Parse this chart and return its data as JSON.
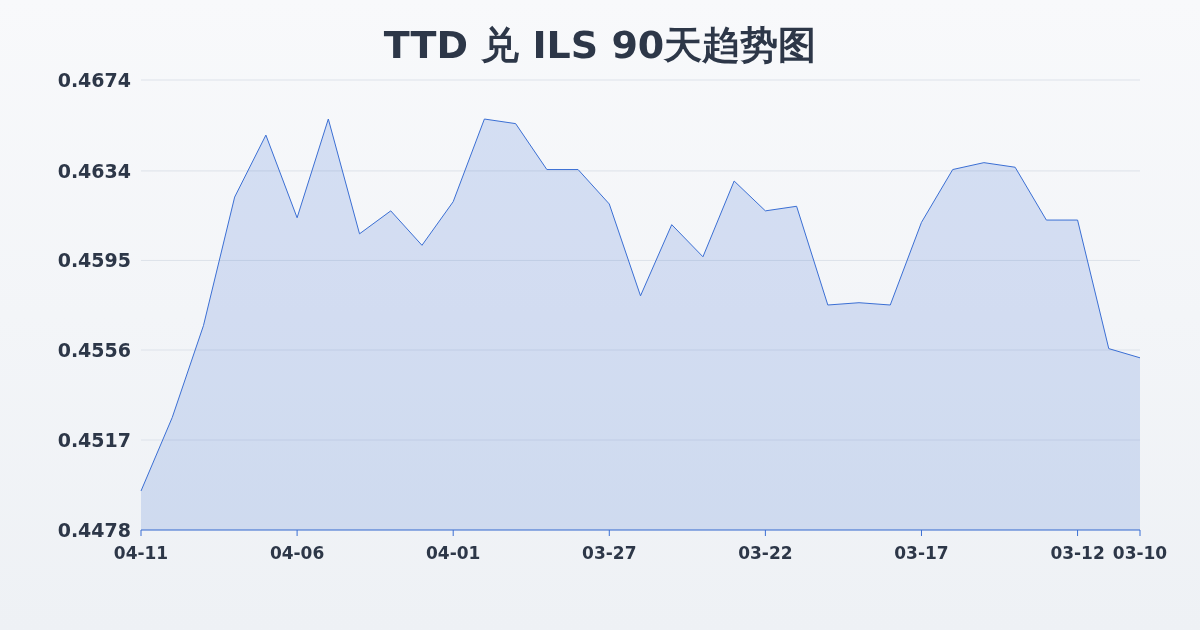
{
  "chart_data": {
    "type": "area",
    "title": "TTD 兑 ILS 90天趋势图",
    "categories": [
      "04-11",
      null,
      null,
      null,
      null,
      "04-06",
      null,
      null,
      null,
      null,
      "04-01",
      null,
      null,
      null,
      null,
      "03-27",
      null,
      null,
      null,
      null,
      "03-22",
      null,
      null,
      null,
      null,
      "03-17",
      null,
      null,
      null,
      null,
      "03-12",
      null,
      "03-10"
    ],
    "series": [
      {
        "color": "#3b6fd4",
        "values": [
          0.4495,
          0.4527,
          0.4567,
          0.4623,
          0.465,
          0.4614,
          0.4657,
          0.4607,
          0.4617,
          0.4602,
          0.4621,
          0.4657,
          0.4655,
          0.4635,
          0.4635,
          0.462,
          0.458,
          0.4611,
          0.4597,
          0.463,
          0.4617,
          0.4619,
          0.4576,
          0.4577,
          0.4576,
          0.4612,
          0.4635,
          0.4638,
          0.4636,
          0.4613,
          0.4613,
          0.4557,
          0.4553
        ]
      }
    ],
    "ylim": [
      0.4478,
      0.4674
    ],
    "yticks": [
      {
        "value": 0.4478,
        "label": "0.4478"
      },
      {
        "value": 0.45172,
        "label": "0.4517"
      },
      {
        "value": 0.45564,
        "label": "0.4556"
      },
      {
        "value": 0.45954,
        "label": "0.4595"
      },
      {
        "value": 0.46344,
        "label": "0.4634"
      },
      {
        "value": 0.4674,
        "label": "0.4674"
      }
    ],
    "grid": "y"
  }
}
